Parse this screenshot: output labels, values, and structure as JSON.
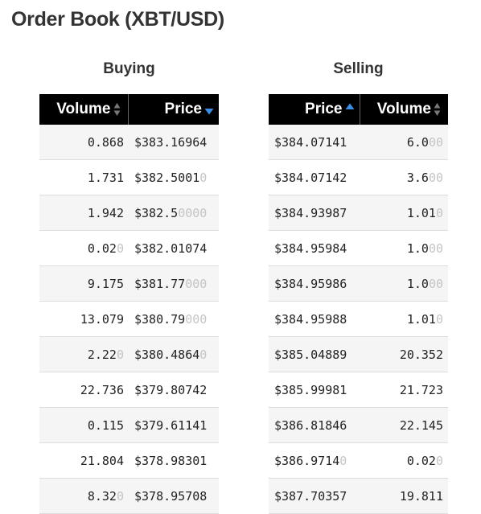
{
  "page_title": "Order Book (XBT/USD)",
  "colors": {
    "header_bg": "#000000",
    "header_text": "#ffffff",
    "sort_active": "#3b8ee6",
    "sort_inactive": "#777777",
    "row_alt": "#f5f5f5",
    "trailing_zero": "#c4c4c4"
  },
  "buying": {
    "heading": "Buying",
    "columns": [
      {
        "key": "volume",
        "label": "Volume",
        "sort": "none",
        "icon": "sort-both-icon"
      },
      {
        "key": "price",
        "label": "Price",
        "sort": "desc",
        "icon": "sort-desc-icon"
      }
    ],
    "rows": [
      {
        "volume": "0.868",
        "volume_trail": "",
        "price": "$383.16964",
        "price_trail": ""
      },
      {
        "volume": "1.731",
        "volume_trail": "",
        "price": "$382.5001",
        "price_trail": "0"
      },
      {
        "volume": "1.942",
        "volume_trail": "",
        "price": "$382.5",
        "price_trail": "0000"
      },
      {
        "volume": "0.02",
        "volume_trail": "0",
        "price": "$382.01074",
        "price_trail": ""
      },
      {
        "volume": "9.175",
        "volume_trail": "",
        "price": "$381.77",
        "price_trail": "000"
      },
      {
        "volume": "13.079",
        "volume_trail": "",
        "price": "$380.79",
        "price_trail": "000"
      },
      {
        "volume": "2.22",
        "volume_trail": "0",
        "price": "$380.4864",
        "price_trail": "0"
      },
      {
        "volume": "22.736",
        "volume_trail": "",
        "price": "$379.80742",
        "price_trail": ""
      },
      {
        "volume": "0.115",
        "volume_trail": "",
        "price": "$379.61141",
        "price_trail": ""
      },
      {
        "volume": "21.804",
        "volume_trail": "",
        "price": "$378.98301",
        "price_trail": ""
      },
      {
        "volume": "8.32",
        "volume_trail": "0",
        "price": "$378.95708",
        "price_trail": ""
      }
    ]
  },
  "selling": {
    "heading": "Selling",
    "columns": [
      {
        "key": "price",
        "label": "Price",
        "sort": "asc",
        "icon": "sort-asc-icon"
      },
      {
        "key": "volume",
        "label": "Volume",
        "sort": "none",
        "icon": "sort-both-icon"
      }
    ],
    "rows": [
      {
        "price": "$384.07141",
        "price_trail": "",
        "volume": "6.0",
        "volume_trail": "00"
      },
      {
        "price": "$384.07142",
        "price_trail": "",
        "volume": "3.6",
        "volume_trail": "00"
      },
      {
        "price": "$384.93987",
        "price_trail": "",
        "volume": "1.01",
        "volume_trail": "0"
      },
      {
        "price": "$384.95984",
        "price_trail": "",
        "volume": "1.0",
        "volume_trail": "00"
      },
      {
        "price": "$384.95986",
        "price_trail": "",
        "volume": "1.0",
        "volume_trail": "00"
      },
      {
        "price": "$384.95988",
        "price_trail": "",
        "volume": "1.01",
        "volume_trail": "0"
      },
      {
        "price": "$385.04889",
        "price_trail": "",
        "volume": "20.352",
        "volume_trail": ""
      },
      {
        "price": "$385.99981",
        "price_trail": "",
        "volume": "21.723",
        "volume_trail": ""
      },
      {
        "price": "$386.81846",
        "price_trail": "",
        "volume": "22.145",
        "volume_trail": ""
      },
      {
        "price": "$386.9714",
        "price_trail": "0",
        "volume": "0.02",
        "volume_trail": "0"
      },
      {
        "price": "$387.70357",
        "price_trail": "",
        "volume": "19.811",
        "volume_trail": ""
      }
    ]
  }
}
